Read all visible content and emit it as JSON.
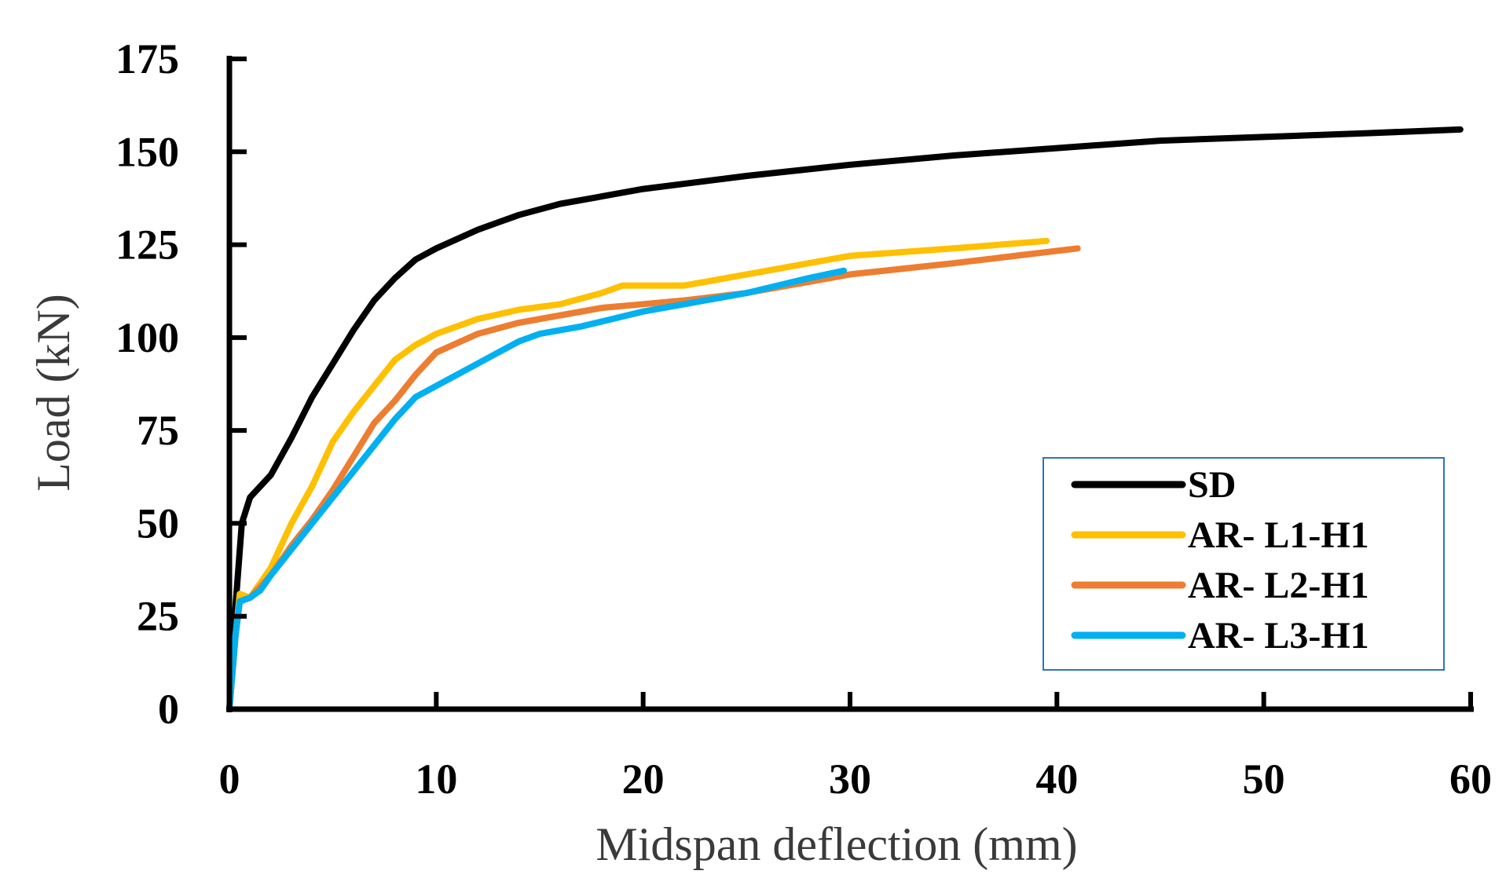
{
  "chart_data": {
    "type": "line",
    "title": "",
    "xlabel": "Midspan deflection (mm)",
    "ylabel": "Load (kN)",
    "xlim": [
      0,
      60
    ],
    "ylim": [
      0,
      175
    ],
    "xticks": [
      0,
      10,
      20,
      30,
      40,
      50,
      60
    ],
    "yticks": [
      0,
      25,
      50,
      75,
      100,
      125,
      150,
      175
    ],
    "grid": false,
    "legend_position": "bottom-right",
    "series": [
      {
        "name": "SD",
        "color": "#000000",
        "points": [
          [
            0,
            0
          ],
          [
            0.3,
            28
          ],
          [
            0.6,
            50
          ],
          [
            1,
            57
          ],
          [
            2,
            63
          ],
          [
            3,
            73
          ],
          [
            4,
            84
          ],
          [
            5,
            93
          ],
          [
            6,
            102
          ],
          [
            7,
            110
          ],
          [
            8,
            116
          ],
          [
            9,
            121
          ],
          [
            10,
            124
          ],
          [
            12,
            129
          ],
          [
            14,
            133
          ],
          [
            16,
            136
          ],
          [
            18,
            138
          ],
          [
            20,
            140
          ],
          [
            25,
            143.5
          ],
          [
            30,
            146.5
          ],
          [
            35,
            149
          ],
          [
            40,
            151
          ],
          [
            45,
            153
          ],
          [
            50,
            154
          ],
          [
            55,
            155
          ],
          [
            59.5,
            156
          ]
        ]
      },
      {
        "name": "AR- L1-H1",
        "color": "#FFC000",
        "points": [
          [
            0,
            0
          ],
          [
            0.3,
            20
          ],
          [
            0.5,
            31
          ],
          [
            1,
            30
          ],
          [
            2,
            38
          ],
          [
            3,
            50
          ],
          [
            4,
            60
          ],
          [
            5,
            72
          ],
          [
            6,
            80
          ],
          [
            7,
            87
          ],
          [
            8,
            94
          ],
          [
            9,
            98
          ],
          [
            10,
            101
          ],
          [
            12,
            105
          ],
          [
            14,
            107.5
          ],
          [
            16,
            109
          ],
          [
            18,
            112
          ],
          [
            19,
            114
          ],
          [
            20,
            114
          ],
          [
            22,
            114
          ],
          [
            25,
            117
          ],
          [
            28,
            120
          ],
          [
            30,
            122
          ],
          [
            35,
            124
          ],
          [
            39.5,
            126
          ]
        ]
      },
      {
        "name": "AR- L2-H1",
        "color": "#ED7D31",
        "points": [
          [
            0,
            0
          ],
          [
            0.3,
            20
          ],
          [
            0.5,
            29
          ],
          [
            1,
            30
          ],
          [
            2,
            36
          ],
          [
            3,
            44
          ],
          [
            4,
            51
          ],
          [
            5,
            59
          ],
          [
            6,
            68
          ],
          [
            7,
            77
          ],
          [
            8,
            83
          ],
          [
            9,
            90
          ],
          [
            10,
            96
          ],
          [
            12,
            101
          ],
          [
            14,
            104
          ],
          [
            16,
            106
          ],
          [
            18,
            108
          ],
          [
            20,
            109
          ],
          [
            22,
            110
          ],
          [
            25,
            112
          ],
          [
            28,
            115
          ],
          [
            30,
            117
          ],
          [
            35,
            120
          ],
          [
            41,
            124
          ]
        ]
      },
      {
        "name": "AR- L3-H1",
        "color": "#00B0F0",
        "points": [
          [
            0,
            0
          ],
          [
            0.3,
            20
          ],
          [
            0.5,
            29
          ],
          [
            1,
            30
          ],
          [
            1.5,
            32
          ],
          [
            2,
            36
          ],
          [
            3,
            43
          ],
          [
            4,
            50
          ],
          [
            5,
            57
          ],
          [
            6,
            64
          ],
          [
            7,
            71
          ],
          [
            8,
            78
          ],
          [
            9,
            84
          ],
          [
            10,
            87
          ],
          [
            11,
            90
          ],
          [
            12,
            93
          ],
          [
            13,
            96
          ],
          [
            14,
            99
          ],
          [
            15,
            101
          ],
          [
            17,
            103
          ],
          [
            20,
            107
          ],
          [
            22,
            109
          ],
          [
            25,
            112
          ],
          [
            28,
            116
          ],
          [
            29.7,
            118
          ]
        ]
      }
    ]
  }
}
